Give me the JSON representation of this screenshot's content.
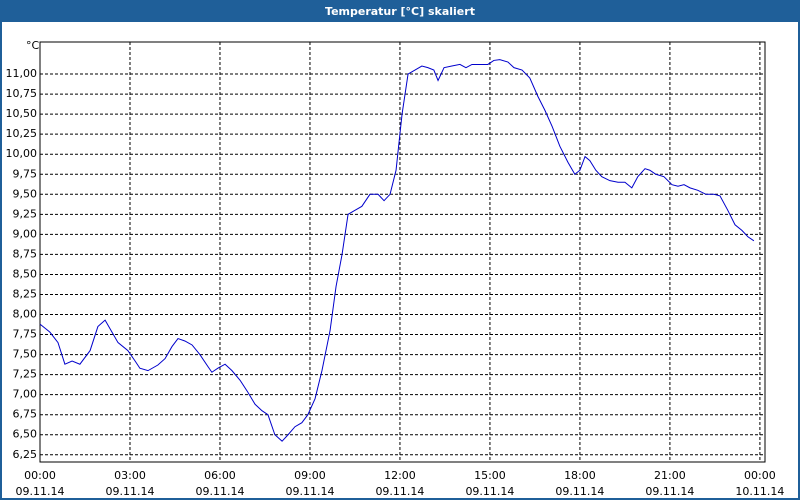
{
  "window_title": "Temperatur [°C] skaliert",
  "chart_data": {
    "type": "line",
    "y_label": "°C",
    "xlim": [
      0,
      24.17
    ],
    "ylim": [
      6.16,
      11.4
    ],
    "grid": true,
    "xticks": [
      {
        "value": 0,
        "label": "00:00 09.11.14"
      },
      {
        "value": 3,
        "label": "03:00 09.11.14"
      },
      {
        "value": 6,
        "label": "06:00 09.11.14"
      },
      {
        "value": 9,
        "label": "09:00 09.11.14"
      },
      {
        "value": 12,
        "label": "12:00 09.11.14"
      },
      {
        "value": 15,
        "label": "15:00 09.11.14"
      },
      {
        "value": 18,
        "label": "18:00 09.11.14"
      },
      {
        "value": 21,
        "label": "21:00 09.11.14"
      },
      {
        "value": 24,
        "label": "00:00 10.11.14"
      }
    ],
    "yticks": [
      {
        "value": 6.25,
        "label": "6,25"
      },
      {
        "value": 6.5,
        "label": "6,50"
      },
      {
        "value": 6.75,
        "label": "6,75"
      },
      {
        "value": 7,
        "label": "7,00"
      },
      {
        "value": 7.25,
        "label": "7,25"
      },
      {
        "value": 7.5,
        "label": "7,50"
      },
      {
        "value": 7.75,
        "label": "7,75"
      },
      {
        "value": 8,
        "label": "8,00"
      },
      {
        "value": 8.25,
        "label": "8,25"
      },
      {
        "value": 8.5,
        "label": "8,50"
      },
      {
        "value": 8.75,
        "label": "8,75"
      },
      {
        "value": 9,
        "label": "9,00"
      },
      {
        "value": 9.25,
        "label": "9,25"
      },
      {
        "value": 9.5,
        "label": "9,50"
      },
      {
        "value": 9.75,
        "label": "9,75"
      },
      {
        "value": 10,
        "label": "10,00"
      },
      {
        "value": 10.25,
        "label": "10,25"
      },
      {
        "value": 10.5,
        "label": "10,50"
      },
      {
        "value": 10.75,
        "label": "10,75"
      },
      {
        "value": 11,
        "label": "11,00"
      }
    ],
    "x": [
      0,
      0.33,
      0.6,
      0.83,
      1.07,
      1.33,
      1.67,
      1.93,
      2.17,
      2.4,
      2.6,
      2.93,
      3.17,
      3.33,
      3.6,
      3.93,
      4.17,
      4.4,
      4.6,
      4.83,
      5.07,
      5.33,
      5.6,
      5.73,
      5.93,
      6.17,
      6.4,
      6.67,
      6.93,
      7.17,
      7.4,
      7.6,
      7.83,
      8.07,
      8.27,
      8.5,
      8.73,
      8.93,
      9.17,
      9.4,
      9.67,
      9.87,
      10.07,
      10.27,
      10.5,
      10.73,
      11,
      11.27,
      11.47,
      11.67,
      11.87,
      12.07,
      12.27,
      12.5,
      12.73,
      12.93,
      13.13,
      13.27,
      13.47,
      13.73,
      14,
      14.2,
      14.4,
      14.67,
      14.93,
      15.13,
      15.33,
      15.6,
      15.8,
      16.07,
      16.33,
      16.6,
      16.83,
      17.07,
      17.33,
      17.6,
      17.83,
      18,
      18.17,
      18.33,
      18.53,
      18.73,
      19,
      19.27,
      19.5,
      19.73,
      19.93,
      20.17,
      20.33,
      20.53,
      20.8,
      21.07,
      21.27,
      21.47,
      21.67,
      21.93,
      22.2,
      22.47,
      22.67,
      22.93,
      23.17,
      23.4,
      23.6,
      23.8
    ],
    "series": [
      {
        "color": "#0000cc",
        "values": [
          7.88,
          7.78,
          7.65,
          7.38,
          7.42,
          7.38,
          7.55,
          7.85,
          7.93,
          7.78,
          7.65,
          7.55,
          7.42,
          7.33,
          7.3,
          7.37,
          7.45,
          7.6,
          7.7,
          7.67,
          7.62,
          7.5,
          7.35,
          7.28,
          7.33,
          7.38,
          7.3,
          7.18,
          7.03,
          6.88,
          6.8,
          6.75,
          6.5,
          6.42,
          6.5,
          6.6,
          6.65,
          6.75,
          6.95,
          7.3,
          7.8,
          8.35,
          8.75,
          9.25,
          9.3,
          9.35,
          9.5,
          9.5,
          9.42,
          9.5,
          9.8,
          10.5,
          11,
          11.05,
          11.1,
          11.08,
          11.05,
          10.92,
          11.08,
          11.1,
          11.12,
          11.08,
          11.12,
          11.12,
          11.12,
          11.17,
          11.18,
          11.15,
          11.08,
          11.05,
          10.95,
          10.72,
          10.55,
          10.35,
          10.1,
          9.9,
          9.75,
          9.8,
          9.97,
          9.92,
          9.8,
          9.72,
          9.67,
          9.65,
          9.65,
          9.58,
          9.72,
          9.82,
          9.8,
          9.75,
          9.72,
          9.62,
          9.6,
          9.62,
          9.58,
          9.55,
          9.5,
          9.5,
          9.48,
          9.3,
          9.12,
          9.05,
          8.97,
          8.92
        ]
      }
    ]
  }
}
